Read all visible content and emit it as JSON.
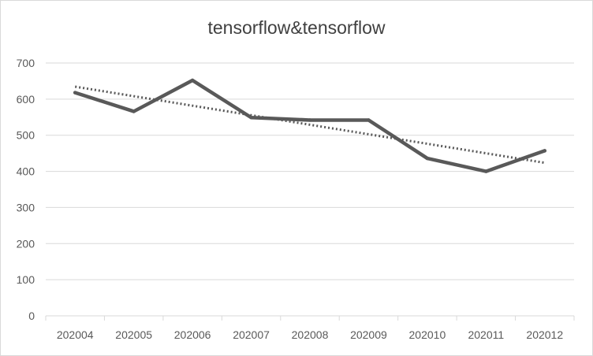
{
  "chart_data": {
    "type": "line",
    "title": "tensorflow&tensorflow",
    "xlabel": "",
    "ylabel": "",
    "categories": [
      "202004",
      "202005",
      "202006",
      "202007",
      "202008",
      "202009",
      "202010",
      "202011",
      "202012"
    ],
    "series": [
      {
        "values": [
          618,
          566,
          652,
          549,
          542,
          542,
          436,
          400,
          457
        ],
        "color": "#595959"
      }
    ],
    "trendline": {
      "type": "linear",
      "style": "dotted",
      "color": "#595959"
    },
    "ylim": [
      0,
      700
    ],
    "yticks": [
      0,
      100,
      200,
      300,
      400,
      500,
      600,
      700
    ],
    "grid": true,
    "legend": "none"
  }
}
